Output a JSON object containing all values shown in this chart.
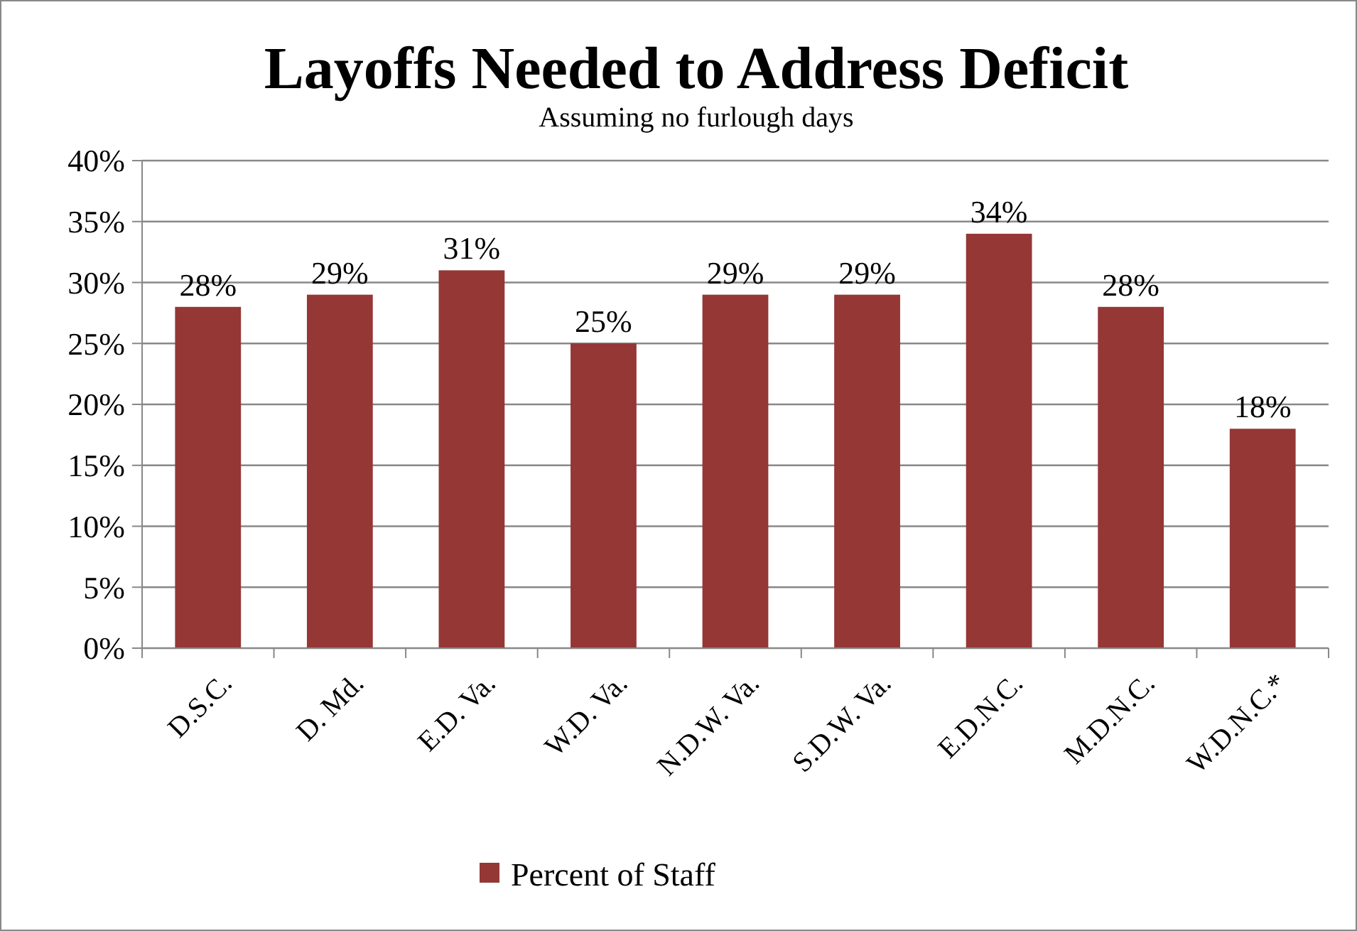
{
  "chart_data": {
    "type": "bar",
    "title": "Layoffs Needed to Address Deficit",
    "subtitle": "Assuming no furlough days",
    "categories": [
      "D.S.C.",
      "D. Md.",
      "E.D. Va.",
      "W.D. Va.",
      "N.D.W. Va.",
      "S.D.W. Va.",
      "E.D.N.C.",
      "M.D.N.C.",
      "W.D.N.C.*"
    ],
    "series": [
      {
        "name": "Percent of Staff",
        "color": "#953735",
        "values": [
          28,
          29,
          31,
          25,
          29,
          29,
          34,
          28,
          18
        ],
        "value_labels": [
          "28%",
          "29%",
          "31%",
          "25%",
          "29%",
          "29%",
          "34%",
          "28%",
          "18%"
        ]
      }
    ],
    "ylim": [
      0,
      40
    ],
    "yticks": [
      {
        "value": 0,
        "label": "0%"
      },
      {
        "value": 5,
        "label": "5%"
      },
      {
        "value": 10,
        "label": "10%"
      },
      {
        "value": 15,
        "label": "15%"
      },
      {
        "value": 20,
        "label": "20%"
      },
      {
        "value": 25,
        "label": "25%"
      },
      {
        "value": 30,
        "label": "30%"
      },
      {
        "value": 35,
        "label": "35%"
      },
      {
        "value": 40,
        "label": "40%"
      }
    ],
    "grid": "y",
    "legend": "bottom"
  }
}
